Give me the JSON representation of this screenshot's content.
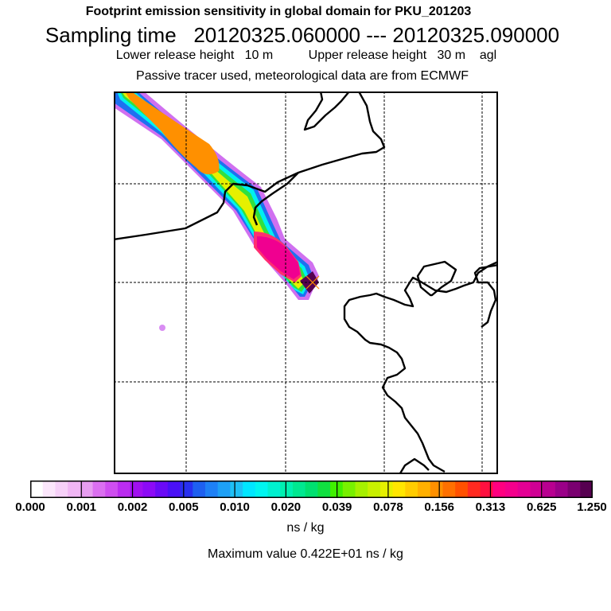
{
  "titles": {
    "line1": "Footprint emission sensitivity in global domain for PKU_201203",
    "line2": "Sampling time   20120325.060000 --- 20120325.090000",
    "line3": "Lower release height   10 m          Upper release height   30 m    agl",
    "line4": "Passive tracer used, meteorological data are from ECMWF"
  },
  "colorbar": {
    "tick_labels": [
      "0.000",
      "0.001",
      "0.002",
      "0.005",
      "0.010",
      "0.020",
      "0.039",
      "0.078",
      "0.156",
      "0.313",
      "0.625",
      "1.250"
    ],
    "colors": [
      "#ffffff",
      "#fbe6fb",
      "#f6d0f8",
      "#f0b6f4",
      "#e79df0",
      "#db6ff0",
      "#cf4ef0",
      "#bb2cf0",
      "#a00ff0",
      "#8c0af5",
      "#6a0af5",
      "#4a10f5",
      "#2830f0",
      "#1e60f0",
      "#1e80f5",
      "#1ea0f5",
      "#1ec0f5",
      "#00e6ff",
      "#00f5f0",
      "#00f0d0",
      "#00f0b0",
      "#00e890",
      "#00e070",
      "#10e040",
      "#40f000",
      "#78f000",
      "#a6f000",
      "#c8f000",
      "#e6f000",
      "#ffe600",
      "#ffcc00",
      "#ffb000",
      "#ff9000",
      "#ff7000",
      "#ff5000",
      "#ff2a20",
      "#ff1040",
      "#ff0080",
      "#f4008c",
      "#e40094",
      "#d00094",
      "#b80090",
      "#9a0088",
      "#7a0070",
      "#560050"
    ]
  },
  "units": "ns / kg",
  "max_value_text": "Maximum value  0.422E+01 ns / kg",
  "legend_colors": {
    "coastline": "#000000",
    "grid": "#000000",
    "receptor_marker": "#ff8c00"
  }
}
